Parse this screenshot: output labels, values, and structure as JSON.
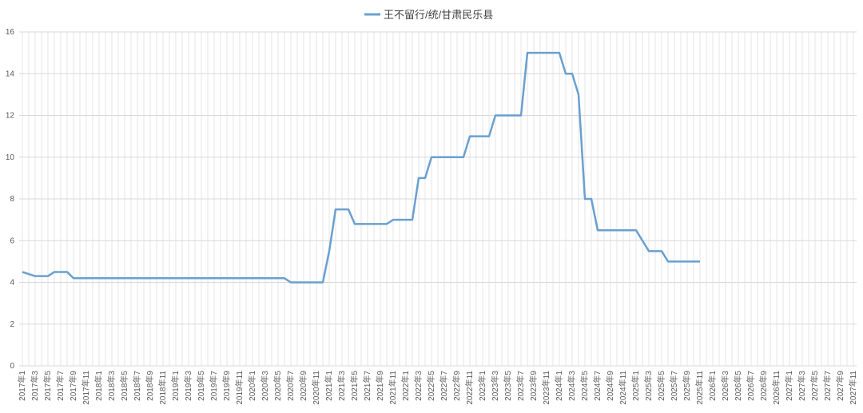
{
  "chart_data": {
    "type": "line",
    "categories": [
      "2017年1",
      null,
      "2017年3",
      null,
      "2017年5",
      null,
      "2017年7",
      null,
      "2017年9",
      null,
      "2017年11",
      null,
      "2018年1",
      null,
      "2018年3",
      null,
      "2018年5",
      null,
      "2018年7",
      null,
      "2018年9",
      null,
      "2018年11",
      null,
      "2019年1",
      null,
      "2019年3",
      null,
      "2019年5",
      null,
      "2019年7",
      null,
      "2019年9",
      null,
      "2019年11",
      null,
      "2020年1",
      null,
      "2020年3",
      null,
      "2020年5",
      null,
      "2020年7",
      null,
      "2020年9",
      null,
      "2020年11",
      null,
      "2021年1",
      null,
      "2021年3",
      null,
      "2021年5",
      null,
      "2021年7",
      null,
      "2021年9",
      null,
      "2021年11",
      null,
      "2022年1",
      null,
      "2022年3",
      null,
      "2022年5",
      null,
      "2022年7",
      null,
      "2022年9",
      null,
      "2022年11",
      null,
      "2023年1",
      null,
      "2023年3",
      null,
      "2023年5",
      null,
      "2023年7",
      null,
      "2023年9",
      null,
      "2023年11",
      null,
      "2024年1",
      null,
      "2024年3",
      null,
      "2024年5",
      null,
      "2024年7",
      null,
      "2024年9",
      null,
      "2024年11",
      null,
      "2025年1",
      null,
      "2025年3",
      null,
      "2025年5",
      null,
      "2025年7",
      null,
      "2025年9",
      null,
      "2025年11",
      null,
      "2026年1",
      null,
      "2026年3",
      null,
      "2026年5",
      null,
      "2026年7",
      null,
      "2026年9",
      null,
      "2026年11",
      null,
      "2027年1",
      null,
      "2027年3",
      null,
      "2027年5",
      null,
      "2027年7",
      null,
      "2027年9",
      null,
      "2027年11"
    ],
    "series": [
      {
        "name": "王不留行/统/甘肃民乐县",
        "color": "#6aa0cf",
        "values": [
          4.5,
          4.4,
          4.3,
          4.3,
          4.3,
          4.5,
          4.5,
          4.5,
          4.2,
          4.2,
          4.2,
          4.2,
          4.2,
          4.2,
          4.2,
          4.2,
          4.2,
          4.2,
          4.2,
          4.2,
          4.2,
          4.2,
          4.2,
          4.2,
          4.2,
          4.2,
          4.2,
          4.2,
          4.2,
          4.2,
          4.2,
          4.2,
          4.2,
          4.2,
          4.2,
          4.2,
          4.2,
          4.2,
          4.2,
          4.2,
          4.2,
          4.2,
          4.0,
          4.0,
          4.0,
          4.0,
          4.0,
          4.0,
          5.5,
          7.5,
          7.5,
          7.5,
          6.8,
          6.8,
          6.8,
          6.8,
          6.8,
          6.8,
          7.0,
          7.0,
          7.0,
          7.0,
          9,
          9,
          10,
          10,
          10,
          10,
          10,
          10,
          11,
          11,
          11,
          11,
          12,
          12,
          12,
          12,
          12,
          15,
          15,
          15,
          15,
          15,
          15,
          14,
          14,
          13,
          8,
          8,
          6.5,
          6.5,
          6.5,
          6.5,
          6.5,
          6.5,
          6.5,
          6,
          5.5,
          5.5,
          5.5,
          5,
          5,
          5,
          5,
          5,
          5,
          null,
          null,
          null,
          null,
          null,
          null,
          null,
          null,
          null,
          null,
          null,
          null,
          null,
          null,
          null,
          null,
          null,
          null,
          null,
          null,
          null,
          null,
          null,
          null
        ]
      }
    ],
    "ylim": [
      0,
      16
    ],
    "yticks": [
      0,
      2,
      4,
      6,
      8,
      10,
      12,
      14,
      16
    ],
    "grid": true,
    "legend": "top"
  }
}
